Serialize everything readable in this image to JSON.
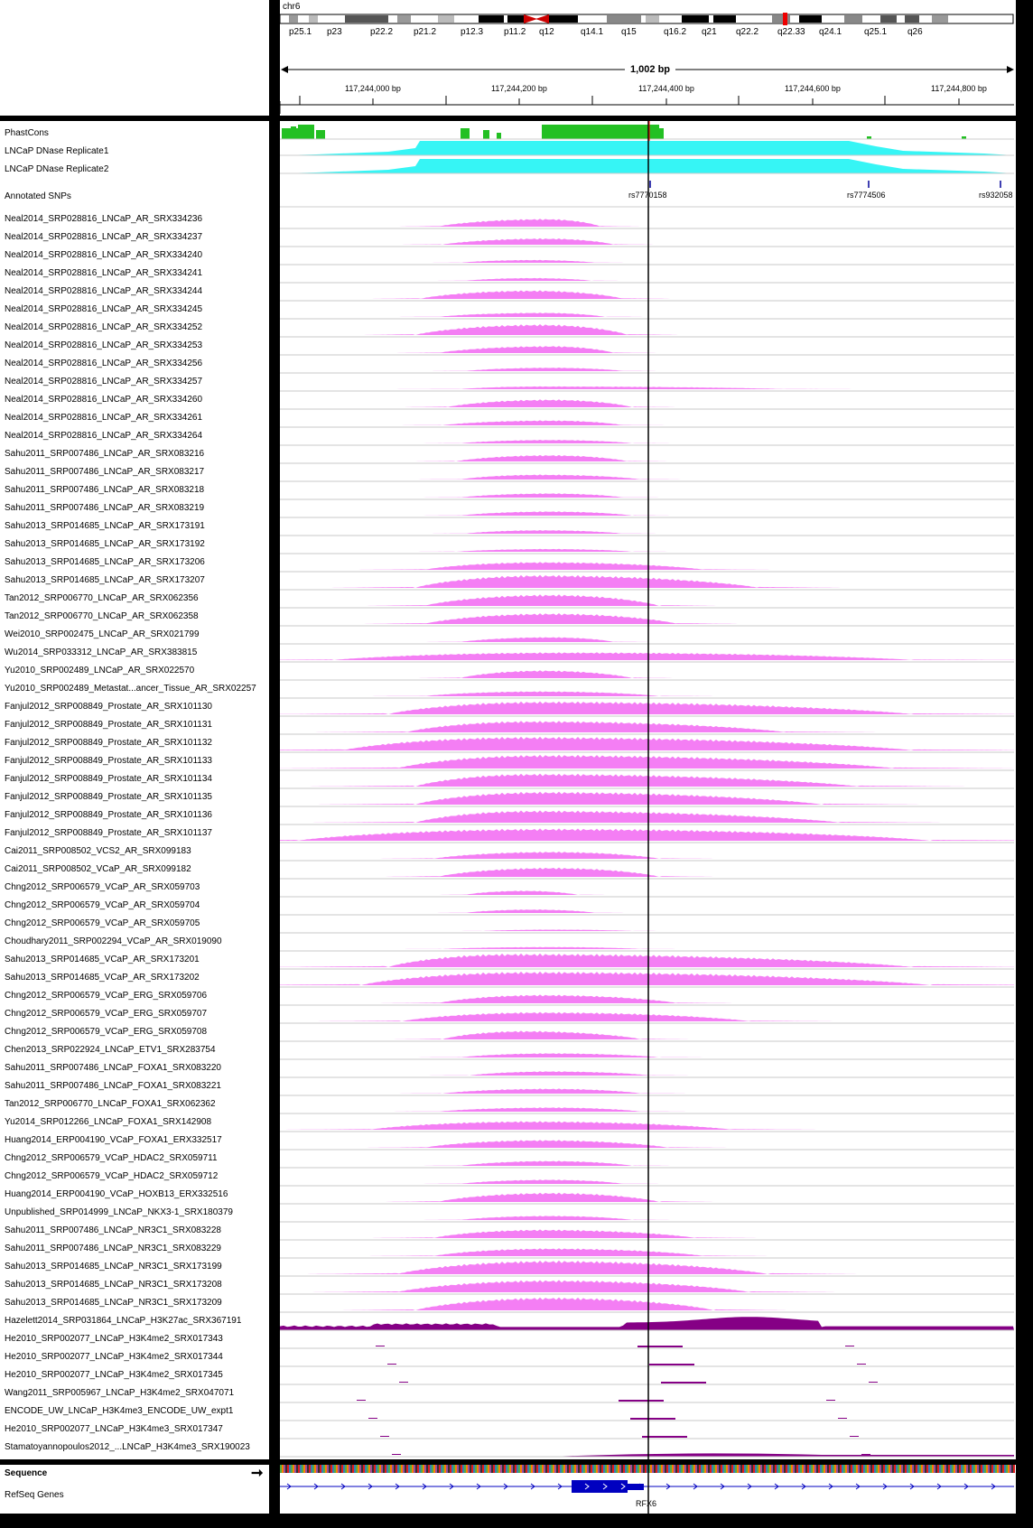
{
  "header": {
    "chromosome": "chr6",
    "bands": [
      "p25.1",
      "p23",
      "p22.2",
      "p21.2",
      "p12.3",
      "p11.2",
      "q12",
      "q14.1",
      "q15",
      "q16.2",
      "q21",
      "q22.2",
      "q22.33",
      "q24.1",
      "q25.1",
      "q26"
    ],
    "span_label": "1,002 bp",
    "ruler_ticks": [
      "117,244,000 bp",
      "117,244,200 bp",
      "117,244,400 bp",
      "117,244,600 bp",
      "117,244,800 bp"
    ]
  },
  "top_tracks": [
    "PhastCons",
    "LNCaP DNase Replicate1",
    "LNCaP DNase Replicate2",
    "Annotated SNPs"
  ],
  "snps": [
    "rs7770158",
    "rs7774506",
    "rs932058"
  ],
  "tracks": [
    "Neal2014_SRP028816_LNCaP_AR_SRX334236",
    "Neal2014_SRP028816_LNCaP_AR_SRX334237",
    "Neal2014_SRP028816_LNCaP_AR_SRX334240",
    "Neal2014_SRP028816_LNCaP_AR_SRX334241",
    "Neal2014_SRP028816_LNCaP_AR_SRX334244",
    "Neal2014_SRP028816_LNCaP_AR_SRX334245",
    "Neal2014_SRP028816_LNCaP_AR_SRX334252",
    "Neal2014_SRP028816_LNCaP_AR_SRX334253",
    "Neal2014_SRP028816_LNCaP_AR_SRX334256",
    "Neal2014_SRP028816_LNCaP_AR_SRX334257",
    "Neal2014_SRP028816_LNCaP_AR_SRX334260",
    "Neal2014_SRP028816_LNCaP_AR_SRX334261",
    "Neal2014_SRP028816_LNCaP_AR_SRX334264",
    "Sahu2011_SRP007486_LNCaP_AR_SRX083216",
    "Sahu2011_SRP007486_LNCaP_AR_SRX083217",
    "Sahu2011_SRP007486_LNCaP_AR_SRX083218",
    "Sahu2011_SRP007486_LNCaP_AR_SRX083219",
    "Sahu2013_SRP014685_LNCaP_AR_SRX173191",
    "Sahu2013_SRP014685_LNCaP_AR_SRX173192",
    "Sahu2013_SRP014685_LNCaP_AR_SRX173206",
    "Sahu2013_SRP014685_LNCaP_AR_SRX173207",
    "Tan2012_SRP006770_LNCaP_AR_SRX062356",
    "Tan2012_SRP006770_LNCaP_AR_SRX062358",
    "Wei2010_SRP002475_LNCaP_AR_SRX021799",
    "Wu2014_SRP033312_LNCaP_AR_SRX383815",
    "Yu2010_SRP002489_LNCaP_AR_SRX022570",
    "Yu2010_SRP002489_Metastat...ancer_Tissue_AR_SRX02257",
    "Fanjul2012_SRP008849_Prostate_AR_SRX101130",
    "Fanjul2012_SRP008849_Prostate_AR_SRX101131",
    "Fanjul2012_SRP008849_Prostate_AR_SRX101132",
    "Fanjul2012_SRP008849_Prostate_AR_SRX101133",
    "Fanjul2012_SRP008849_Prostate_AR_SRX101134",
    "Fanjul2012_SRP008849_Prostate_AR_SRX101135",
    "Fanjul2012_SRP008849_Prostate_AR_SRX101136",
    "Fanjul2012_SRP008849_Prostate_AR_SRX101137",
    "Cai2011_SRP008502_VCS2_AR_SRX099183",
    "Cai2011_SRP008502_VCaP_AR_SRX099182",
    "Chng2012_SRP006579_VCaP_AR_SRX059703",
    "Chng2012_SRP006579_VCaP_AR_SRX059704",
    "Chng2012_SRP006579_VCaP_AR_SRX059705",
    "Choudhary2011_SRP002294_VCaP_AR_SRX019090",
    "Sahu2013_SRP014685_VCaP_AR_SRX173201",
    "Sahu2013_SRP014685_VCaP_AR_SRX173202",
    "Chng2012_SRP006579_VCaP_ERG_SRX059706",
    "Chng2012_SRP006579_VCaP_ERG_SRX059707",
    "Chng2012_SRP006579_VCaP_ERG_SRX059708",
    "Chen2013_SRP022924_LNCaP_ETV1_SRX283754",
    "Sahu2011_SRP007486_LNCaP_FOXA1_SRX083220",
    "Sahu2011_SRP007486_LNCaP_FOXA1_SRX083221",
    "Tan2012_SRP006770_LNCaP_FOXA1_SRX062362",
    "Yu2014_SRP012266_LNCaP_FOXA1_SRX142908",
    "Huang2014_ERP004190_VCaP_FOXA1_ERX332517",
    "Chng2012_SRP006579_VCaP_HDAC2_SRX059711",
    "Chng2012_SRP006579_VCaP_HDAC2_SRX059712",
    "Huang2014_ERP004190_VCaP_HOXB13_ERX332516",
    "Unpublished_SRP014999_LNCaP_NKX3-1_SRX180379",
    "Sahu2011_SRP007486_LNCaP_NR3C1_SRX083228",
    "Sahu2011_SRP007486_LNCaP_NR3C1_SRX083229",
    "Sahu2013_SRP014685_LNCaP_NR3C1_SRX173199",
    "Sahu2013_SRP014685_LNCaP_NR3C1_SRX173208",
    "Sahu2013_SRP014685_LNCaP_NR3C1_SRX173209",
    "Hazelett2014_SRP031864_LNCaP_H3K27ac_SRX367191",
    "He2010_SRP002077_LNCaP_H3K4me2_SRX017343",
    "He2010_SRP002077_LNCaP_H3K4me2_SRX017344",
    "He2010_SRP002077_LNCaP_H3K4me2_SRX017345",
    "Wang2011_SRP005967_LNCaP_H3K4me2_SRX047071",
    "ENCODE_UW_LNCaP_H3K4me3_ENCODE_UW_expt1",
    "He2010_SRP002077_LNCaP_H3K4me3_SRX017347",
    "Stamatoyannopoulos2012_...LNCaP_H3K4me3_SRX190023"
  ],
  "bottom_tracks": {
    "sequence": "Sequence",
    "refseq": "RefSeq Genes",
    "gene": "RFX6"
  },
  "colors": {
    "chip": "#f47ef4",
    "histone": "#850085",
    "dnase": "#36f5f5",
    "phastcons": "#23c023",
    "gene": "#0000c0",
    "cursor": "#000000"
  }
}
